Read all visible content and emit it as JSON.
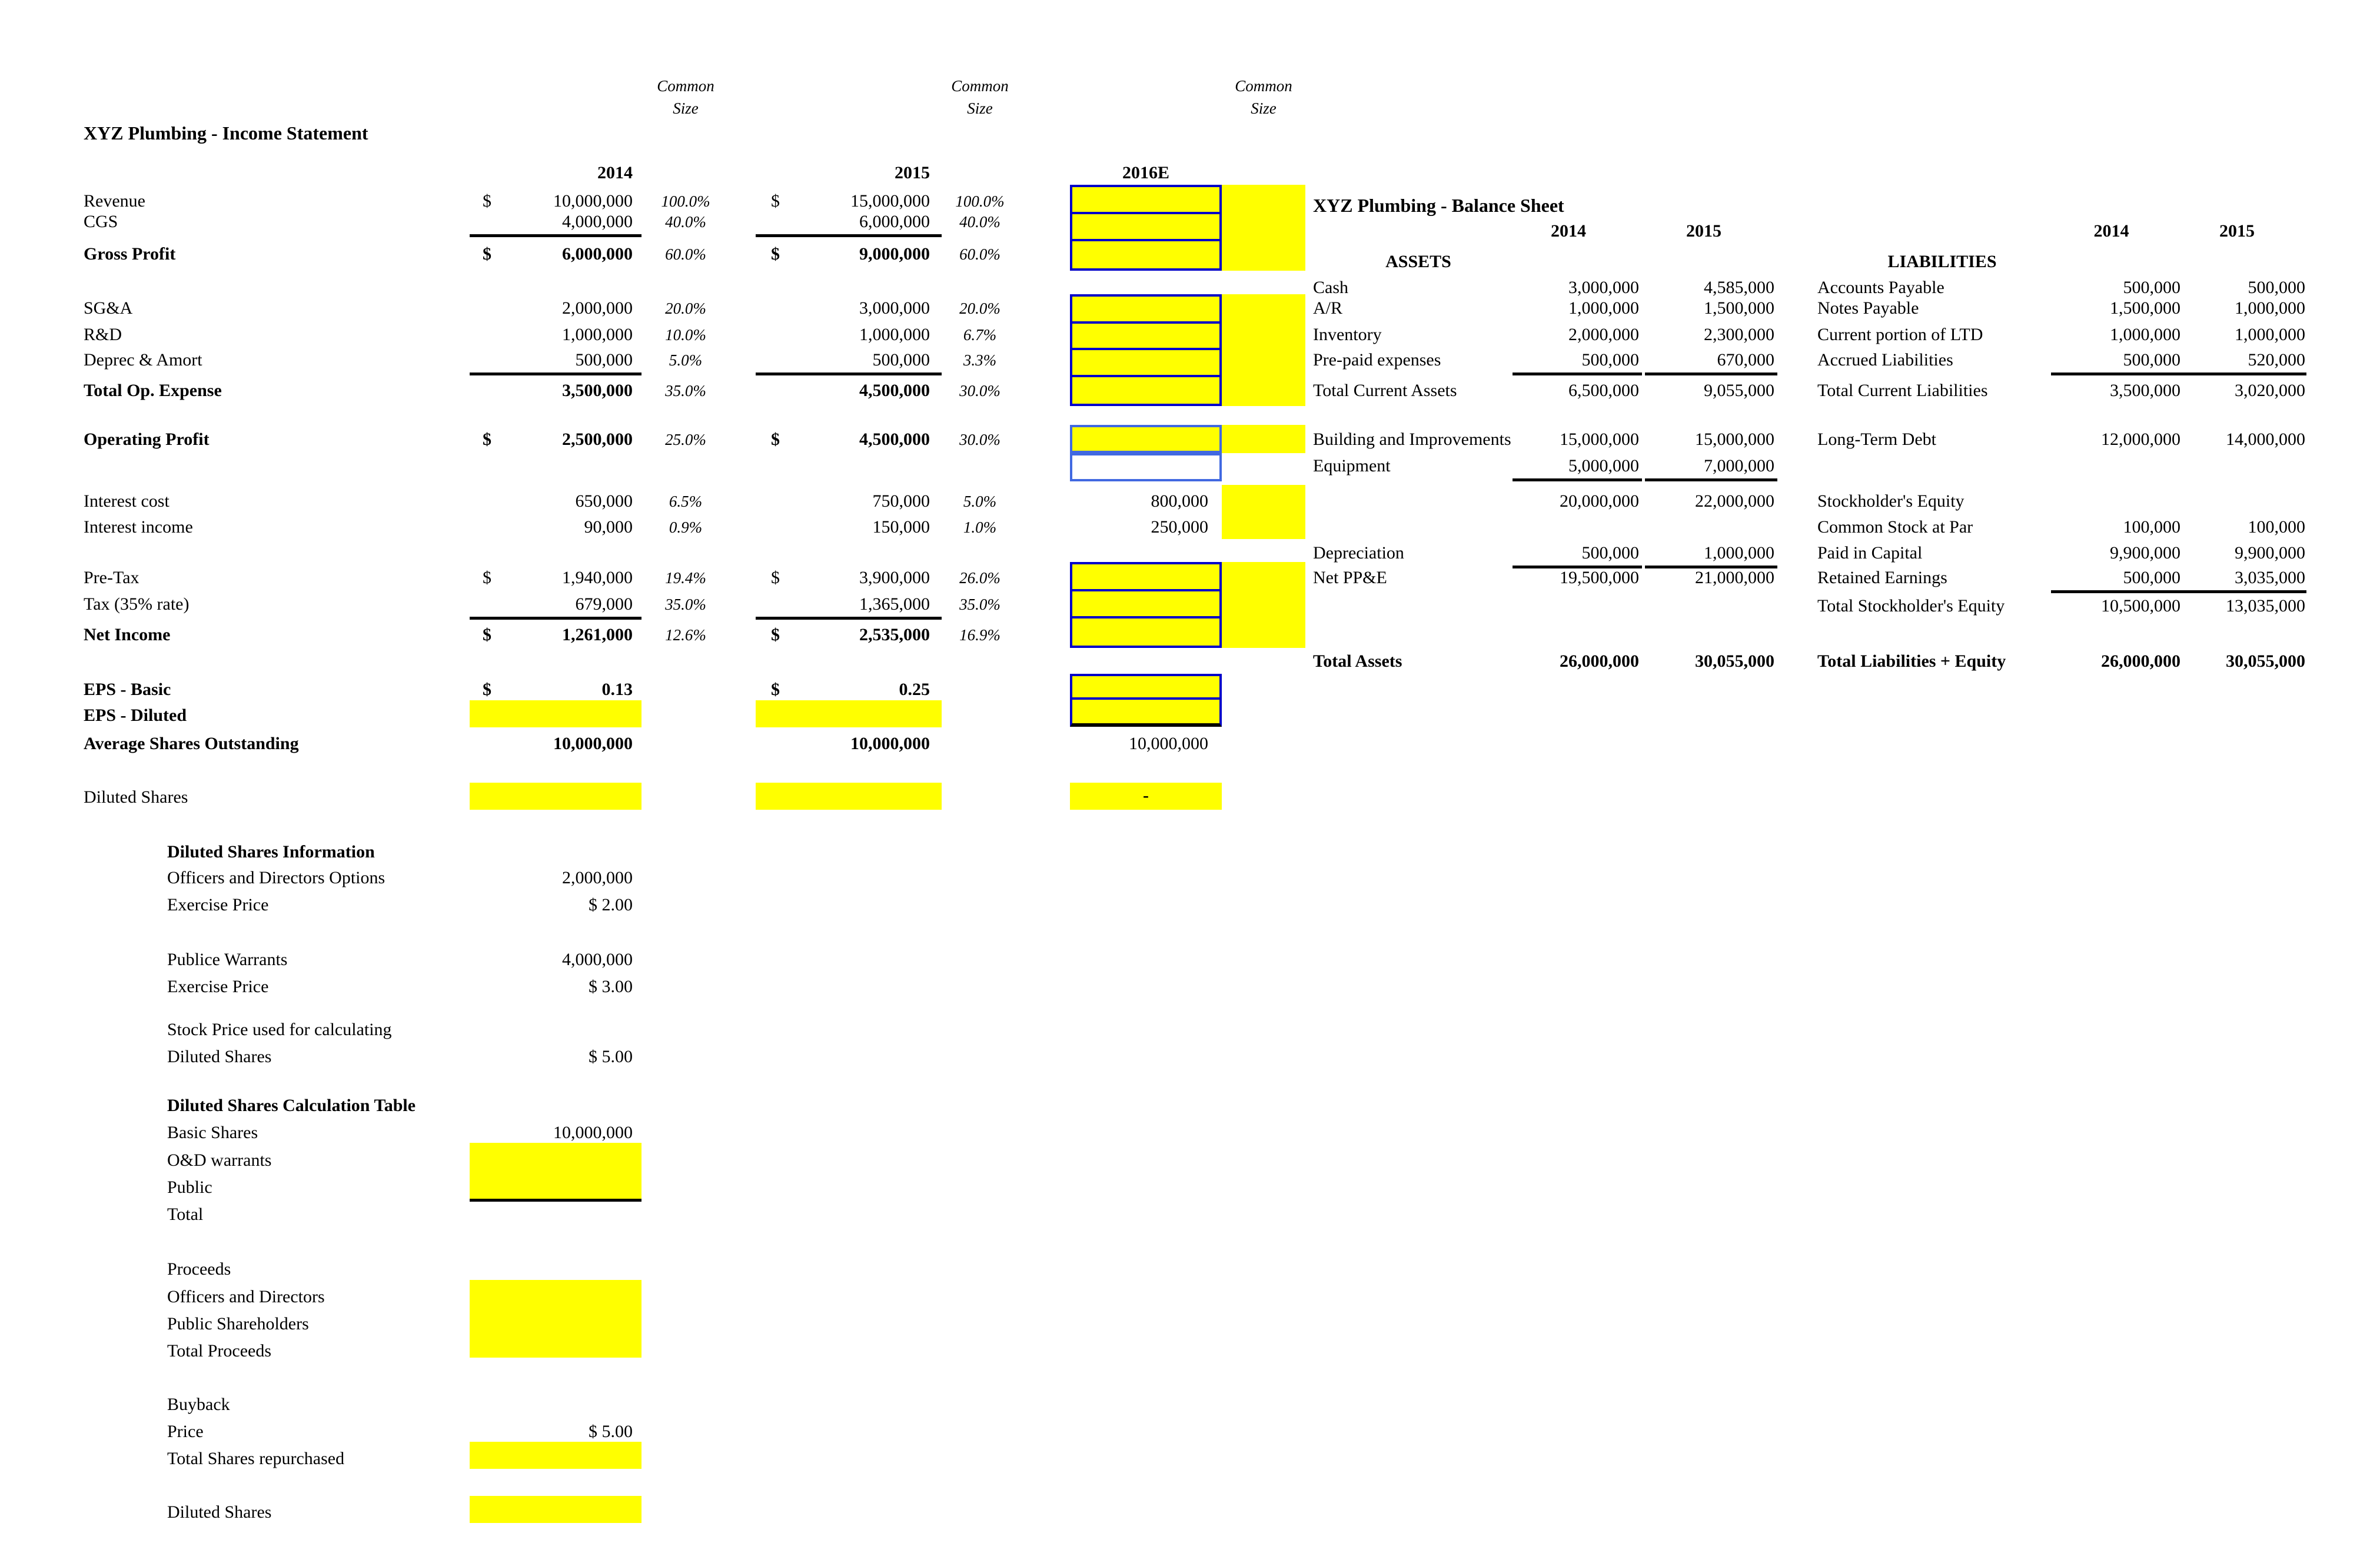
{
  "meta": {
    "dollar_sign": "$",
    "highlight_color": "#FFFF00",
    "input_border_color": "#0000C8",
    "input_border_light": "#4169E1",
    "dash": "-"
  },
  "headers": {
    "income_title": "XYZ Plumbing  -  Income Statement",
    "balance_title": "XYZ Plumbing  -  Balance Sheet",
    "common_size_line1": "Common",
    "common_size_line2": "Size",
    "year_2014": "2014",
    "year_2015": "2015",
    "year_2016": "2016E",
    "assets_header": "ASSETS",
    "liabilities_header": "LIABILITIES"
  },
  "income_rows": [
    {
      "label": "Revenue",
      "dollar": true,
      "v1": "10,000,000",
      "p1": "100.0%",
      "v2": "15,000,000",
      "p2": "100.0%"
    },
    {
      "label": "CGS",
      "v1": "4,000,000",
      "p1": "40.0%",
      "v2": "6,000,000",
      "p2": "40.0%",
      "underline": true
    },
    {
      "label": "Gross Profit",
      "bold": true,
      "dollar": true,
      "v1": "6,000,000",
      "p1": "60.0%",
      "v2": "9,000,000",
      "p2": "60.0%"
    },
    {
      "label": "SG&A",
      "v1": "2,000,000",
      "p1": "20.0%",
      "v2": "3,000,000",
      "p2": "20.0%"
    },
    {
      "label": "R&D",
      "v1": "1,000,000",
      "p1": "10.0%",
      "v2": "1,000,000",
      "p2": "6.7%"
    },
    {
      "label": "Deprec & Amort",
      "v1": "500,000",
      "p1": "5.0%",
      "v2": "500,000",
      "p2": "3.3%",
      "underline": true
    },
    {
      "label": "Total Op. Expense",
      "bold": true,
      "v1": "3,500,000",
      "p1": "35.0%",
      "v2": "4,500,000",
      "p2": "30.0%"
    },
    {
      "label": "Operating Profit",
      "bold": true,
      "dollar": true,
      "v1": "2,500,000",
      "p1": "25.0%",
      "v2": "4,500,000",
      "p2": "30.0%"
    },
    {
      "label": "Interest cost",
      "v1": "650,000",
      "p1": "6.5%",
      "v2": "750,000",
      "p2": "5.0%",
      "v3": "800,000"
    },
    {
      "label": "Interest income",
      "v1": "90,000",
      "p1": "0.9%",
      "v2": "150,000",
      "p2": "1.0%",
      "v3": "250,000"
    },
    {
      "label": "Pre-Tax",
      "dollar": true,
      "v1": "1,940,000",
      "p1": "19.4%",
      "v2": "3,900,000",
      "p2": "26.0%"
    },
    {
      "label": "Tax (35% rate)",
      "v1": "679,000",
      "p1": "35.0%",
      "v2": "1,365,000",
      "p2": "35.0%",
      "underline": true
    },
    {
      "label": "Net Income",
      "bold": true,
      "dollar": true,
      "v1": "1,261,000",
      "p1": "12.6%",
      "v2": "2,535,000",
      "p2": "16.9%"
    },
    {
      "label": "EPS - Basic",
      "bold": true,
      "dollar": true,
      "v1": "0.13",
      "v2": "0.25"
    },
    {
      "label": "EPS - Diluted",
      "bold": true
    },
    {
      "label": "Average Shares Outstanding",
      "bold": true,
      "v1": "10,000,000",
      "v2": "10,000,000",
      "v3": "10,000,000",
      "v3_regular": true
    },
    {
      "label": "Diluted Shares",
      "v3": "-",
      "v3_center": true
    }
  ],
  "balance_rows": [
    {
      "label": "Cash",
      "v1": "3,000,000",
      "v2": "4,585,000"
    },
    {
      "label": "A/R",
      "v1": "1,000,000",
      "v2": "1,500,000"
    },
    {
      "label": "Inventory",
      "v1": "2,000,000",
      "v2": "2,300,000"
    },
    {
      "label": "Pre-paid expenses",
      "v1": "500,000",
      "v2": "670,000",
      "underline": true
    },
    {
      "label": "Total Current Assets",
      "v1": "6,500,000",
      "v2": "9,055,000"
    },
    {
      "label": "Building and Improvements",
      "v1": "15,000,000",
      "v2": "15,000,000"
    },
    {
      "label": "Equipment",
      "v1": "5,000,000",
      "v2": "7,000,000",
      "underline": true
    },
    {
      "label": "",
      "v1": "20,000,000",
      "v2": "22,000,000"
    },
    {
      "label": "Depreciation",
      "v1": "500,000",
      "v2": "1,000,000",
      "underline": true
    },
    {
      "label": "Net PP&E",
      "v1": "19,500,000",
      "v2": "21,000,000"
    },
    {
      "label": "Total Assets",
      "bold": true,
      "v1": "26,000,000",
      "v2": "30,055,000"
    }
  ],
  "liability_rows": [
    {
      "label": "Accounts Payable",
      "v1": "500,000",
      "v2": "500,000"
    },
    {
      "label": "Notes Payable",
      "v1": "1,500,000",
      "v2": "1,000,000"
    },
    {
      "label": "Current portion of LTD",
      "v1": "1,000,000",
      "v2": "1,000,000"
    },
    {
      "label": "Accrued Liabilities",
      "v1": "500,000",
      "v2": "520,000",
      "underline": true
    },
    {
      "label": "Total Current Liabilities",
      "v1": "3,500,000",
      "v2": "3,020,000"
    },
    {
      "label": "Long-Term Debt",
      "v1": "12,000,000",
      "v2": "14,000,000"
    },
    {
      "label": "Stockholder's Equity"
    },
    {
      "label": "Common Stock at Par",
      "v1": "100,000",
      "v2": "100,000"
    },
    {
      "label": "Paid in Capital",
      "v1": "9,900,000",
      "v2": "9,900,000"
    },
    {
      "label": "Retained Earnings",
      "v1": "500,000",
      "v2": "3,035,000",
      "underline": true
    },
    {
      "label": "Total Stockholder's Equity",
      "v1": "10,500,000",
      "v2": "13,035,000"
    },
    {
      "label": "Total Liabilities + Equity",
      "bold": true,
      "v1": "26,000,000",
      "v2": "30,055,000"
    }
  ],
  "lower_rows": [
    {
      "label": "Diluted Shares Information",
      "bold": true
    },
    {
      "label": "Officers and Directors Options",
      "value": "2,000,000"
    },
    {
      "label": "Exercise Price",
      "value": "$ 2.00"
    },
    {
      "label": "Publice Warrants",
      "value": "4,000,000"
    },
    {
      "label": "Exercise Price",
      "value": "$ 3.00"
    },
    {
      "label": "Stock Price used for calculating"
    },
    {
      "label": "Diluted Shares",
      "value": "$ 5.00"
    },
    {
      "label": "Diluted Shares Calculation Table",
      "bold": true
    },
    {
      "label": "Basic Shares",
      "value": "10,000,000"
    },
    {
      "label": "O&D warrants"
    },
    {
      "label": "Public"
    },
    {
      "label": "Total"
    },
    {
      "label": "Proceeds"
    },
    {
      "label": "Officers and Directors"
    },
    {
      "label": "Public Shareholders"
    },
    {
      "label": "Total Proceeds"
    },
    {
      "label": "Buyback"
    },
    {
      "label": "Price",
      "value": "$ 5.00"
    },
    {
      "label": "Total Shares repurchased"
    },
    {
      "label": "Diluted Shares"
    }
  ]
}
